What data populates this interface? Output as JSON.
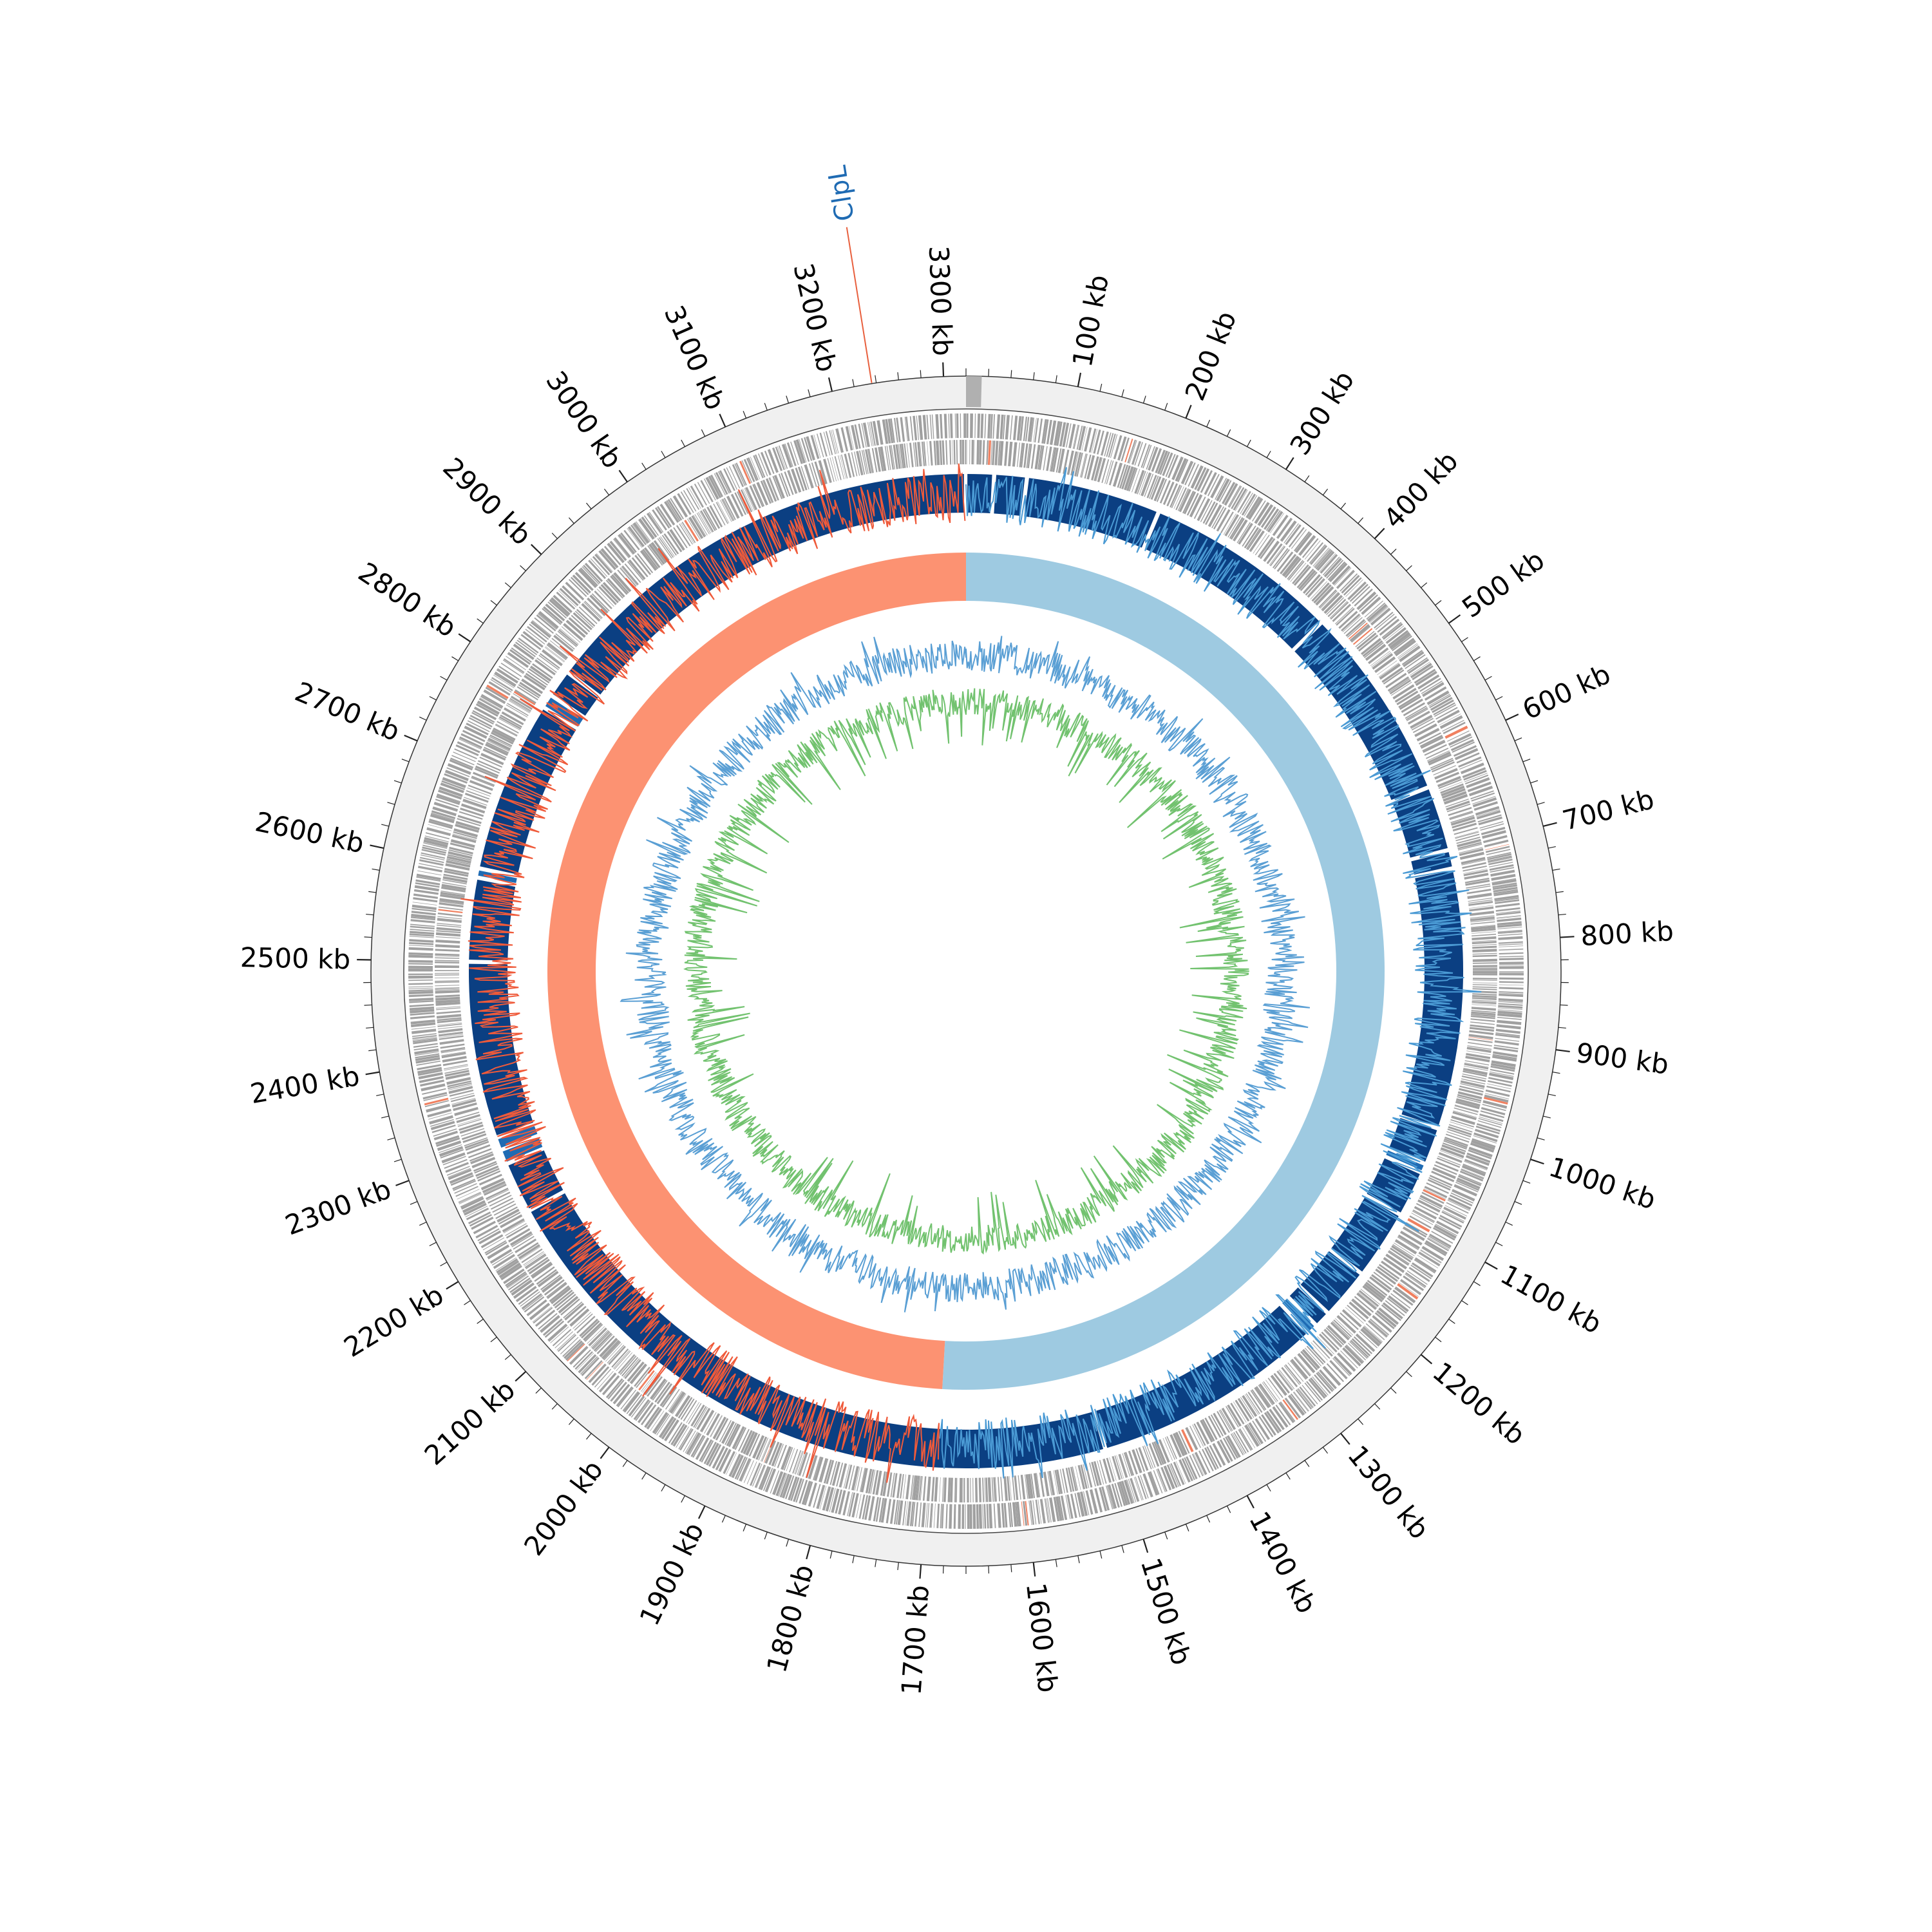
{
  "genome": {
    "length_kb": 3320,
    "tick_unit": "kb",
    "major_ticks_kb": [
      100,
      200,
      300,
      400,
      500,
      600,
      700,
      800,
      900,
      1000,
      1100,
      1200,
      1300,
      1400,
      1500,
      1600,
      1700,
      1800,
      1900,
      2000,
      2100,
      2200,
      2300,
      2400,
      2500,
      2600,
      2700,
      2800,
      2900,
      3000,
      3100,
      3200,
      3300
    ],
    "minor_tick_interval_kb": 20
  },
  "highlighted_gene": {
    "label": "ClpL",
    "position_kb": 3236,
    "label_color": "#1f6bb3",
    "marker_color": "#e8603e"
  },
  "tracks": {
    "features": {
      "color": "#a0a0a0",
      "highlight_color": "#f08060"
    },
    "contigs": {
      "color": "#0b3f82",
      "accent_color": "#1f6bb3",
      "breaks_kb": [
        30,
        65,
        210,
        420,
        630,
        700,
        720,
        1000,
        1040,
        1050,
        1100,
        1175,
        1230,
        1248,
        1260,
        1510,
        2225,
        2280,
        2296,
        2310,
        2500,
        2590,
        2600,
        2785,
        2800,
        2830
      ]
    },
    "gc_skew": {
      "positive_color": "#9ecae1",
      "positive_stroke": "#4a9ad4",
      "negative_color": "#fc9272",
      "negative_stroke": "#ef5a3a",
      "origin_kb": 0,
      "terminus_kb": 1690
    },
    "gc_content": {
      "high_color": "#5a9fd4",
      "low_color": "#72c26f"
    }
  }
}
